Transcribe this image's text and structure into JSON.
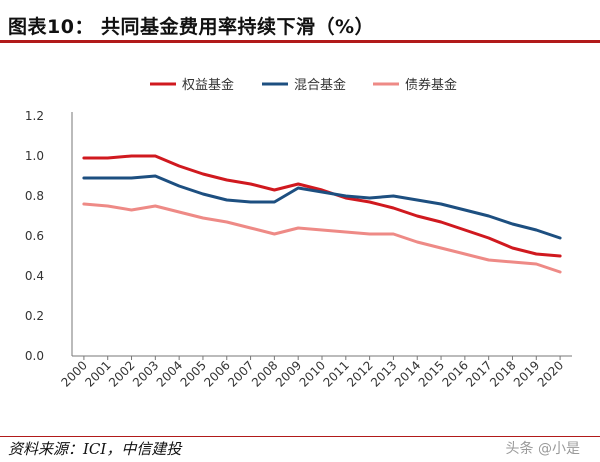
{
  "header": {
    "title": "图表10： 共同基金费用率持续下滑（%）"
  },
  "footer": {
    "source": "资料来源：ICI，中信建投",
    "watermark": "头条 @小是"
  },
  "chart_data": {
    "type": "line",
    "title": "图表10： 共同基金费用率持续下滑（%）",
    "xlabel": "",
    "ylabel": "",
    "categories": [
      "2000",
      "2001",
      "2002",
      "2003",
      "2004",
      "2005",
      "2006",
      "2007",
      "2008",
      "2009",
      "2010",
      "2011",
      "2012",
      "2013",
      "2014",
      "2015",
      "2016",
      "2017",
      "2018",
      "2019",
      "2020"
    ],
    "ylim": [
      0,
      1.2
    ],
    "yticks": [
      "0.0",
      "0.2",
      "0.4",
      "0.6",
      "0.8",
      "1.0",
      "1.2"
    ],
    "grid": false,
    "legend": "top",
    "series": [
      {
        "name": "权益基金",
        "color": "#d0191f",
        "values": [
          0.99,
          0.99,
          1.0,
          1.0,
          0.95,
          0.91,
          0.88,
          0.86,
          0.83,
          0.86,
          0.83,
          0.79,
          0.77,
          0.74,
          0.7,
          0.67,
          0.63,
          0.59,
          0.54,
          0.51,
          0.5
        ]
      },
      {
        "name": "混合基金",
        "color": "#1d4f80",
        "values": [
          0.89,
          0.89,
          0.89,
          0.9,
          0.85,
          0.81,
          0.78,
          0.77,
          0.77,
          0.84,
          0.82,
          0.8,
          0.79,
          0.8,
          0.78,
          0.76,
          0.73,
          0.7,
          0.66,
          0.63,
          0.59
        ]
      },
      {
        "name": "债券基金",
        "color": "#ee8a86",
        "values": [
          0.76,
          0.75,
          0.73,
          0.75,
          0.72,
          0.69,
          0.67,
          0.64,
          0.61,
          0.64,
          0.63,
          0.62,
          0.61,
          0.61,
          0.57,
          0.54,
          0.51,
          0.48,
          0.47,
          0.46,
          0.42
        ]
      }
    ]
  }
}
